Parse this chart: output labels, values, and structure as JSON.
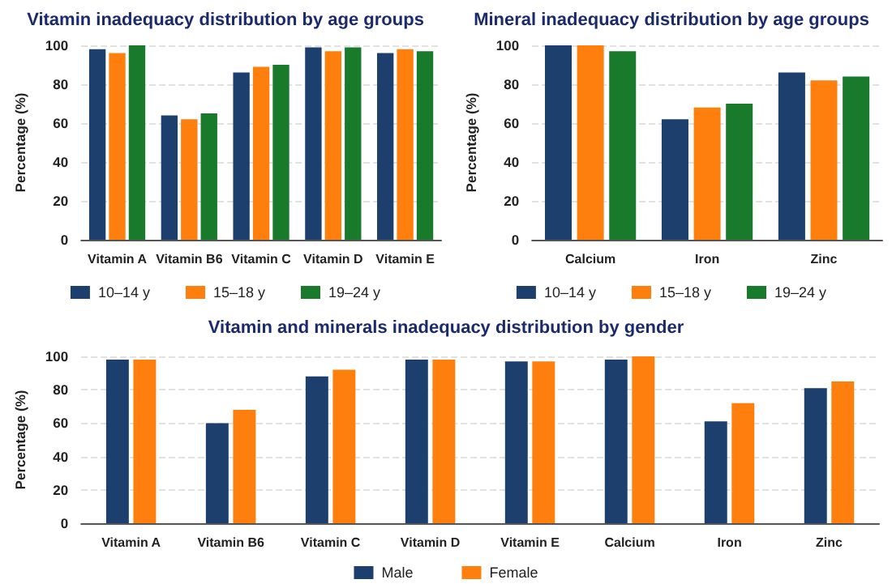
{
  "chart_data": [
    {
      "type": "bar",
      "title": "Vitamin inadequacy distribution by age groups",
      "ylabel": "Percentage (%)",
      "categories": [
        "Vitamin A",
        "Vitamin B6",
        "Vitamin C",
        "Vitamin D",
        "Vitamin E"
      ],
      "series": [
        {
          "name": "10–14 y",
          "color": "#1c3f6e",
          "values": [
            98,
            64,
            86,
            99,
            96
          ]
        },
        {
          "name": "15–18 y",
          "color": "#ff7f0e",
          "values": [
            96,
            62,
            89,
            97,
            98
          ]
        },
        {
          "name": "19–24 y",
          "color": "#1a7a2c",
          "values": [
            100,
            65,
            90,
            99,
            97
          ]
        }
      ],
      "ylim": [
        0,
        100
      ],
      "yticks": [
        0,
        20,
        40,
        60,
        80,
        100
      ],
      "grid": "y",
      "legend": "bottom"
    },
    {
      "type": "bar",
      "title": "Mineral inadequacy distribution by age groups",
      "ylabel": "Percentage (%)",
      "categories": [
        "Calcium",
        "Iron",
        "Zinc"
      ],
      "series": [
        {
          "name": "10–14 y",
          "color": "#1c3f6e",
          "values": [
            100,
            62,
            86
          ]
        },
        {
          "name": "15–18 y",
          "color": "#ff7f0e",
          "values": [
            100,
            68,
            82
          ]
        },
        {
          "name": "19–24 y",
          "color": "#1a7a2c",
          "values": [
            97,
            70,
            84
          ]
        }
      ],
      "ylim": [
        0,
        100
      ],
      "yticks": [
        0,
        20,
        40,
        60,
        80,
        100
      ],
      "grid": "y",
      "legend": "bottom"
    },
    {
      "type": "bar",
      "title": "Vitamin and minerals inadequacy distribution by gender",
      "ylabel": "Percentage (%)",
      "categories": [
        "Vitamin A",
        "Vitamin B6",
        "Vitamin C",
        "Vitamin D",
        "Vitamin E",
        "Calcium",
        "Iron",
        "Zinc"
      ],
      "series": [
        {
          "name": "Male",
          "color": "#1c3f6e",
          "values": [
            98,
            60,
            88,
            98,
            97,
            98,
            61,
            81
          ]
        },
        {
          "name": "Female",
          "color": "#ff7f0e",
          "values": [
            98,
            68,
            92,
            98,
            97,
            100,
            72,
            85
          ]
        }
      ],
      "ylim": [
        0,
        100
      ],
      "yticks": [
        0,
        20,
        40,
        60,
        80,
        100
      ],
      "grid": "y",
      "legend": "bottom"
    }
  ]
}
